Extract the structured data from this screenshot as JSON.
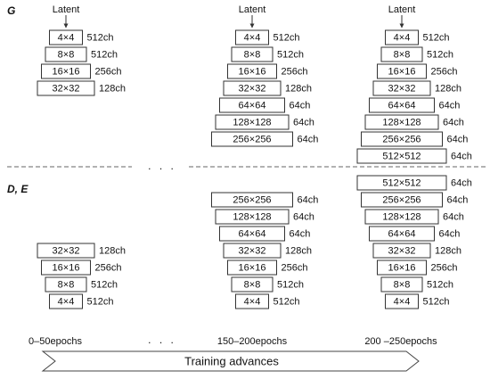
{
  "generator_label": "G",
  "discriminator_label": "D, E",
  "latent_label": "Latent",
  "ellipsis": ". . .",
  "columns": [
    {
      "generator": [
        {
          "res": "4×4",
          "ch": "512ch"
        },
        {
          "res": "8×8",
          "ch": "512ch"
        },
        {
          "res": "16×16",
          "ch": "256ch"
        },
        {
          "res": "32×32",
          "ch": "128ch"
        }
      ],
      "discriminator": [
        {
          "res": "32×32",
          "ch": "128ch"
        },
        {
          "res": "16×16",
          "ch": "256ch"
        },
        {
          "res": "8×8",
          "ch": "512ch"
        },
        {
          "res": "4×4",
          "ch": "512ch"
        }
      ],
      "epoch_label": "0–50epochs"
    },
    {
      "generator": [
        {
          "res": "4×4",
          "ch": "512ch"
        },
        {
          "res": "8×8",
          "ch": "512ch"
        },
        {
          "res": "16×16",
          "ch": "256ch"
        },
        {
          "res": "32×32",
          "ch": "128ch"
        },
        {
          "res": "64×64",
          "ch": "64ch"
        },
        {
          "res": "128×128",
          "ch": "64ch"
        },
        {
          "res": "256×256",
          "ch": "64ch"
        }
      ],
      "discriminator": [
        {
          "res": "256×256",
          "ch": "64ch"
        },
        {
          "res": "128×128",
          "ch": "64ch"
        },
        {
          "res": "64×64",
          "ch": "64ch"
        },
        {
          "res": "32×32",
          "ch": "128ch"
        },
        {
          "res": "16×16",
          "ch": "256ch"
        },
        {
          "res": "8×8",
          "ch": "512ch"
        },
        {
          "res": "4×4",
          "ch": "512ch"
        }
      ],
      "epoch_label": "150–200epochs"
    },
    {
      "generator": [
        {
          "res": "4×4",
          "ch": "512ch"
        },
        {
          "res": "8×8",
          "ch": "512ch"
        },
        {
          "res": "16×16",
          "ch": "256ch"
        },
        {
          "res": "32×32",
          "ch": "128ch"
        },
        {
          "res": "64×64",
          "ch": "64ch"
        },
        {
          "res": "128×128",
          "ch": "64ch"
        },
        {
          "res": "256×256",
          "ch": "64ch"
        },
        {
          "res": "512×512",
          "ch": "64ch"
        }
      ],
      "discriminator": [
        {
          "res": "512×512",
          "ch": "64ch"
        },
        {
          "res": "256×256",
          "ch": "64ch"
        },
        {
          "res": "128×128",
          "ch": "64ch"
        },
        {
          "res": "64×64",
          "ch": "64ch"
        },
        {
          "res": "32×32",
          "ch": "128ch"
        },
        {
          "res": "16×16",
          "ch": "256ch"
        },
        {
          "res": "8×8",
          "ch": "512ch"
        },
        {
          "res": "4×4",
          "ch": "512ch"
        }
      ],
      "epoch_label": "200 –250epochs"
    }
  ],
  "arrow_label": "Training advances"
}
